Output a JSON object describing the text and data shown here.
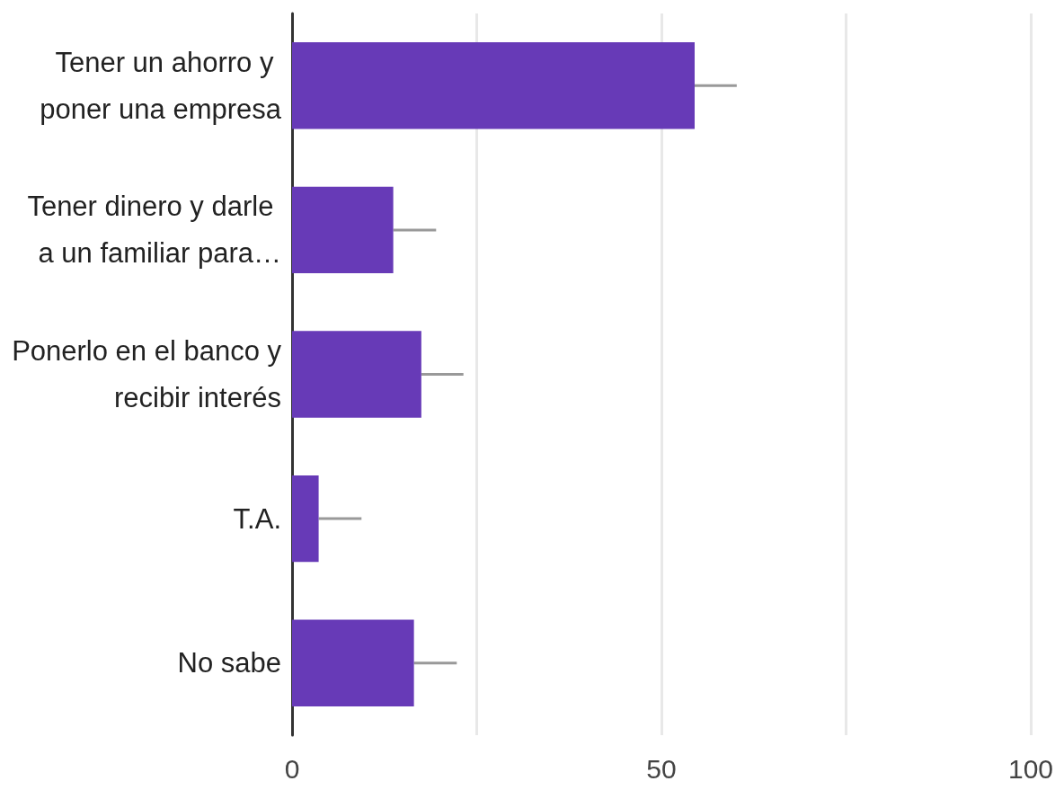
{
  "chart_data": {
    "type": "bar",
    "orientation": "horizontal",
    "categories": [
      "Tener un ahorro y poner una empresa",
      "Tener dinero y darle a un familiar para…",
      "Ponerlo en el banco y recibir interés",
      "T.A.",
      "No sabe"
    ],
    "values": [
      54.5,
      13.7,
      17.5,
      3.6,
      16.5
    ],
    "errors": [
      [
        54.5,
        60.2
      ],
      [
        13.7,
        19.5
      ],
      [
        17.5,
        23.2
      ],
      [
        3.6,
        9.4
      ],
      [
        16.5,
        22.3
      ]
    ],
    "color": "#673ab7",
    "xlim": [
      0,
      100
    ],
    "xticks": [
      0,
      {
        "value": 25,
        "label": null
      },
      50,
      {
        "value": 75,
        "label": null
      },
      100
    ],
    "grid": "x"
  }
}
